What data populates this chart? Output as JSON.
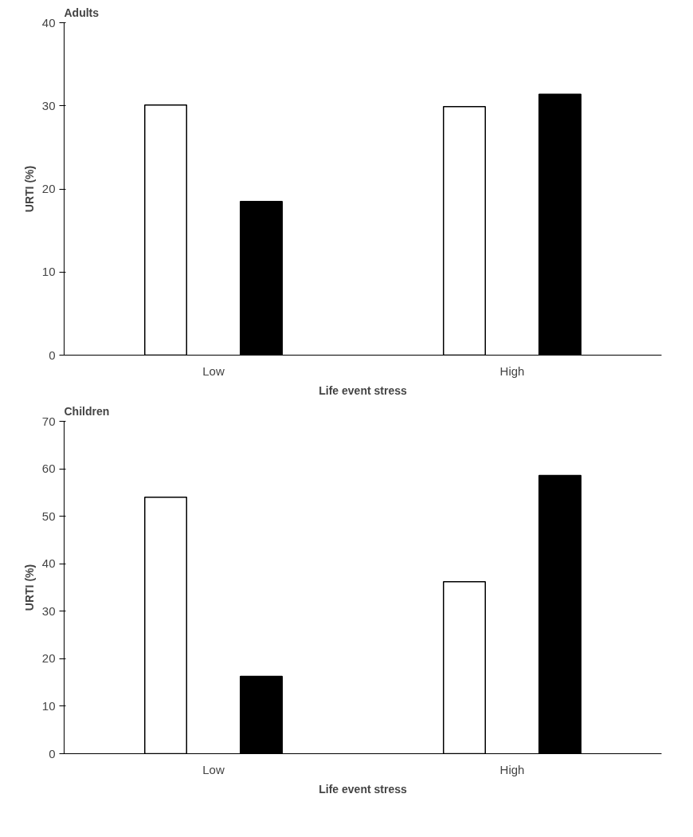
{
  "chart_data": [
    {
      "type": "bar",
      "title": "Adults",
      "xlabel": "Life event stress",
      "ylabel": "URTI (%)",
      "categories": [
        "Low",
        "High"
      ],
      "series": [
        {
          "color": "#ffffff",
          "values": [
            30.1,
            29.9
          ]
        },
        {
          "color": "#000000",
          "values": [
            18.5,
            31.4
          ]
        }
      ],
      "ylim": [
        0,
        40
      ],
      "yticks": [
        0,
        10,
        20,
        30,
        40
      ],
      "grid": false
    },
    {
      "type": "bar",
      "title": "Children",
      "xlabel": "Life event stress",
      "ylabel": "URTI (%)",
      "categories": [
        "Low",
        "High"
      ],
      "series": [
        {
          "color": "#ffffff",
          "values": [
            54,
            36.2
          ]
        },
        {
          "color": "#000000",
          "values": [
            16.3,
            58.6
          ]
        }
      ],
      "ylim": [
        0,
        70
      ],
      "yticks": [
        0,
        10,
        20,
        30,
        40,
        50,
        60,
        70
      ],
      "grid": false
    }
  ]
}
